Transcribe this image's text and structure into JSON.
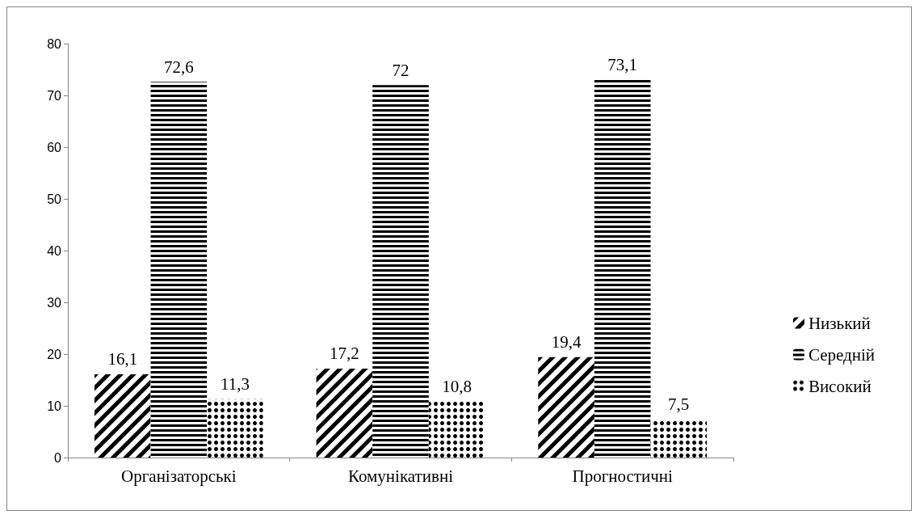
{
  "chart_data": {
    "type": "bar",
    "categories": [
      "Організаторські",
      "Комунікативні",
      "Прогностичні"
    ],
    "series": [
      {
        "name": "Низький",
        "color": "#000000",
        "values": [
          16.1,
          17.2,
          19.4
        ],
        "value_labels": [
          "16,1",
          "17,2",
          "19,4"
        ]
      },
      {
        "name": "Середній",
        "color": "#000000",
        "values": [
          72.6,
          72,
          73.1
        ],
        "value_labels": [
          "72,6",
          "72",
          "73,1"
        ]
      },
      {
        "name": "Високий",
        "color": "#000000",
        "values": [
          11.3,
          10.8,
          7.5
        ],
        "value_labels": [
          "11,3",
          "10,8",
          "7,5"
        ]
      }
    ],
    "ylim": [
      0,
      80
    ],
    "yticks": [
      0,
      10,
      20,
      30,
      40,
      50,
      60,
      70,
      80
    ],
    "grid": false,
    "legend": "right"
  }
}
